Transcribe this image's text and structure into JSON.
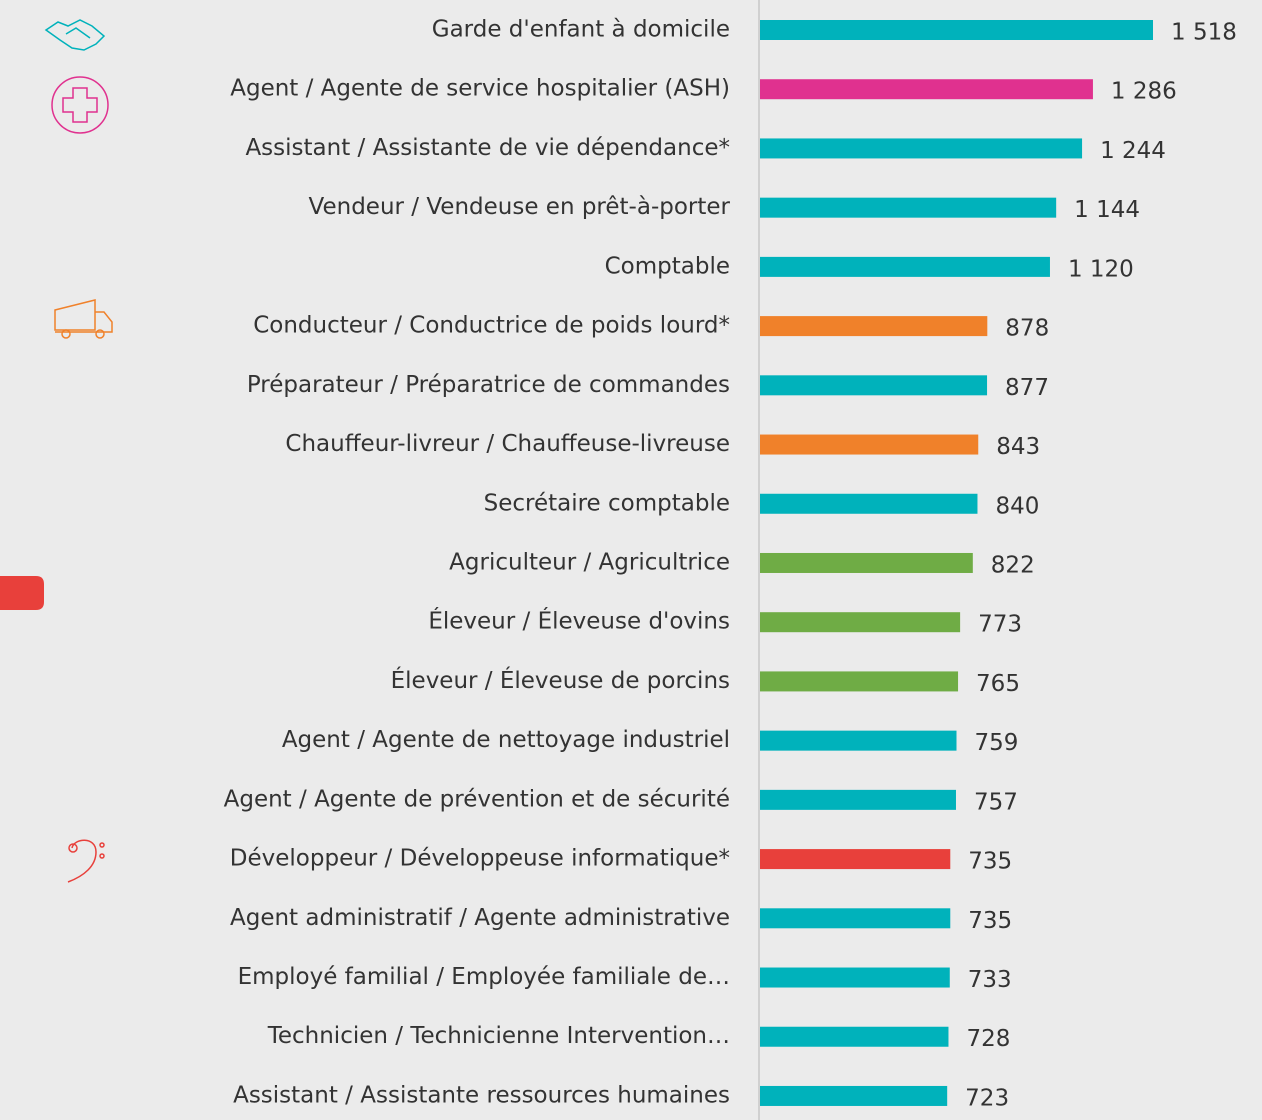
{
  "chart_data": {
    "type": "bar",
    "orientation": "horizontal",
    "categories": [
      "Garde d'enfant à domicile",
      "Agent / Agente de service hospitalier (ASH)",
      "Assistant / Assistante de vie dépendance*",
      "Vendeur / Vendeuse en prêt-à-porter",
      "Comptable",
      "Conducteur / Conductrice de poids lourd*",
      "Préparateur / Préparatrice de commandes",
      "Chauffeur-livreur / Chauffeuse-livreuse",
      "Secrétaire comptable",
      "Agriculteur / Agricultrice",
      "Éleveur / Éleveuse d'ovins",
      "Éleveur / Éleveuse de porcins",
      "Agent / Agente de nettoyage industriel",
      "Agent / Agente de prévention et de sécurité",
      "Développeur / Développeuse informatique*",
      "Agent administratif / Agente administrative",
      "Employé familial / Employée familiale de…",
      "Technicien / Technicienne Intervention…",
      "Assistant / Assistante ressources humaines"
    ],
    "values": [
      1518,
      1286,
      1244,
      1144,
      1120,
      878,
      877,
      843,
      840,
      822,
      773,
      765,
      759,
      757,
      735,
      735,
      733,
      728,
      723
    ],
    "value_labels": [
      "1 518",
      "1 286",
      "1 244",
      "1 144",
      "1 120",
      "878",
      "877",
      "843",
      "840",
      "822",
      "773",
      "765",
      "759",
      "757",
      "735",
      "735",
      "733",
      "728",
      "723"
    ],
    "colors": [
      "#00b2bb",
      "#e0318f",
      "#00b2bb",
      "#00b2bb",
      "#00b2bb",
      "#f0812a",
      "#00b2bb",
      "#f0812a",
      "#00b2bb",
      "#6fac45",
      "#6fac45",
      "#6fac45",
      "#00b2bb",
      "#00b2bb",
      "#e8403b",
      "#00b2bb",
      "#00b2bb",
      "#00b2bb",
      "#00b2bb"
    ]
  }
}
